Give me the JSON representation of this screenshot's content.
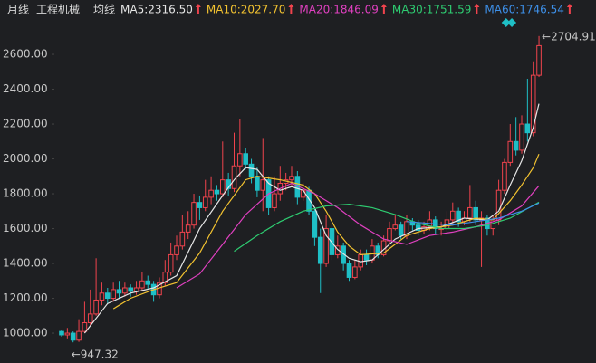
{
  "chart_data": {
    "type": "candlestick",
    "period": "月线",
    "title": "工程机械",
    "ma_label": "均线",
    "up_color": "#f0434d",
    "down_color": "#1fbfc6",
    "ylim": [
      860,
      2756
    ],
    "yticks": [
      {
        "value": 1000,
        "label": "1000.00"
      },
      {
        "value": 1200,
        "label": "1200.00"
      },
      {
        "value": 1400,
        "label": "1400.00"
      },
      {
        "value": 1600,
        "label": "1600.00"
      },
      {
        "value": 1800,
        "label": "1800.00"
      },
      {
        "value": 2000,
        "label": "2000.00"
      },
      {
        "value": 2200,
        "label": "2200.00"
      },
      {
        "value": 2400,
        "label": "2400.00"
      },
      {
        "value": 2600,
        "label": "2600.00"
      }
    ],
    "grid": false,
    "annotations": {
      "high": "←2704.91",
      "low": "←947.32"
    },
    "candles": [
      [
        1010,
        1020,
        980,
        990
      ],
      [
        990,
        1030,
        970,
        1000
      ],
      [
        1000,
        1010,
        947.32,
        960
      ],
      [
        960,
        1080,
        950,
        1010
      ],
      [
        1010,
        1180,
        1000,
        1060
      ],
      [
        1060,
        1250,
        1040,
        1110
      ],
      [
        1110,
        1430,
        1100,
        1190
      ],
      [
        1190,
        1290,
        1160,
        1230
      ],
      [
        1230,
        1260,
        1170,
        1200
      ],
      [
        1200,
        1290,
        1180,
        1250
      ],
      [
        1250,
        1300,
        1200,
        1230
      ],
      [
        1230,
        1290,
        1210,
        1260
      ],
      [
        1260,
        1280,
        1210,
        1240
      ],
      [
        1240,
        1300,
        1220,
        1260
      ],
      [
        1260,
        1350,
        1240,
        1300
      ],
      [
        1300,
        1330,
        1250,
        1280
      ],
      [
        1280,
        1300,
        1180,
        1220
      ],
      [
        1220,
        1320,
        1200,
        1290
      ],
      [
        1290,
        1420,
        1270,
        1350
      ],
      [
        1350,
        1520,
        1330,
        1450
      ],
      [
        1450,
        1560,
        1420,
        1500
      ],
      [
        1500,
        1680,
        1480,
        1580
      ],
      [
        1580,
        1700,
        1540,
        1620
      ],
      [
        1620,
        1800,
        1600,
        1750
      ],
      [
        1750,
        1790,
        1650,
        1720
      ],
      [
        1720,
        1880,
        1700,
        1780
      ],
      [
        1780,
        1900,
        1740,
        1820
      ],
      [
        1820,
        1850,
        1760,
        1800
      ],
      [
        1800,
        2100,
        1780,
        1880
      ],
      [
        1880,
        1920,
        1790,
        1830
      ],
      [
        1830,
        2150,
        1810,
        1960
      ],
      [
        1960,
        2230,
        1900,
        2030
      ],
      [
        2030,
        2060,
        1940,
        1970
      ],
      [
        1970,
        2000,
        1860,
        1900
      ],
      [
        1900,
        1950,
        1780,
        1820
      ],
      [
        1820,
        2120,
        1700,
        1880
      ],
      [
        1880,
        1900,
        1680,
        1720
      ],
      [
        1720,
        1900,
        1700,
        1800
      ],
      [
        1800,
        1960,
        1760,
        1860
      ],
      [
        1860,
        1920,
        1820,
        1880
      ],
      [
        1880,
        1960,
        1840,
        1900
      ],
      [
        1900,
        1930,
        1740,
        1780
      ],
      [
        1780,
        1860,
        1760,
        1820
      ],
      [
        1820,
        1840,
        1680,
        1700
      ],
      [
        1700,
        1720,
        1500,
        1550
      ],
      [
        1550,
        1600,
        1230,
        1400
      ],
      [
        1400,
        1680,
        1380,
        1600
      ],
      [
        1600,
        1620,
        1420,
        1450
      ],
      [
        1450,
        1560,
        1430,
        1500
      ],
      [
        1500,
        1520,
        1360,
        1400
      ],
      [
        1400,
        1420,
        1300,
        1320
      ],
      [
        1320,
        1420,
        1310,
        1380
      ],
      [
        1380,
        1480,
        1360,
        1450
      ],
      [
        1450,
        1480,
        1390,
        1420
      ],
      [
        1420,
        1540,
        1400,
        1500
      ],
      [
        1500,
        1520,
        1430,
        1450
      ],
      [
        1450,
        1560,
        1440,
        1530
      ],
      [
        1530,
        1640,
        1510,
        1600
      ],
      [
        1600,
        1680,
        1590,
        1620
      ],
      [
        1620,
        1640,
        1540,
        1560
      ],
      [
        1560,
        1680,
        1540,
        1640
      ],
      [
        1640,
        1660,
        1590,
        1620
      ],
      [
        1620,
        1650,
        1560,
        1590
      ],
      [
        1590,
        1640,
        1570,
        1610
      ],
      [
        1610,
        1700,
        1590,
        1650
      ],
      [
        1650,
        1670,
        1570,
        1600
      ],
      [
        1600,
        1640,
        1560,
        1600
      ],
      [
        1600,
        1700,
        1580,
        1650
      ],
      [
        1650,
        1750,
        1630,
        1700
      ],
      [
        1700,
        1720,
        1610,
        1640
      ],
      [
        1640,
        1700,
        1620,
        1660
      ],
      [
        1660,
        1850,
        1640,
        1720
      ],
      [
        1720,
        1760,
        1620,
        1650
      ],
      [
        1650,
        1700,
        1380,
        1660
      ],
      [
        1660,
        1680,
        1560,
        1600
      ],
      [
        1600,
        1680,
        1560,
        1650
      ],
      [
        1650,
        1880,
        1620,
        1820
      ],
      [
        1820,
        2000,
        1800,
        1980
      ],
      [
        1980,
        2200,
        1960,
        2100
      ],
      [
        2100,
        2240,
        2020,
        2050
      ],
      [
        2050,
        2250,
        2030,
        2200
      ],
      [
        2200,
        2460,
        2100,
        2150
      ],
      [
        2150,
        2560,
        2130,
        2480
      ],
      [
        2480,
        2704.91,
        2470,
        2650
      ]
    ],
    "series": [
      {
        "name": "MA5:2316.50",
        "color": "#e6e6e6",
        "x": [
          4,
          8,
          12,
          16,
          20,
          24,
          28,
          30,
          32,
          34,
          36,
          38,
          40,
          42,
          44,
          46,
          48,
          50,
          52,
          54,
          58,
          62,
          66,
          70,
          74,
          76,
          78,
          80,
          82,
          83
        ],
        "values": [
          1000,
          1170,
          1230,
          1260,
          1330,
          1600,
          1790,
          1880,
          1950,
          1940,
          1860,
          1820,
          1840,
          1820,
          1720,
          1560,
          1480,
          1430,
          1410,
          1420,
          1540,
          1600,
          1610,
          1660,
          1650,
          1700,
          1850,
          1990,
          2180,
          2316.5
        ]
      },
      {
        "name": "MA10:2027.70",
        "color": "#f2c230",
        "x": [
          9,
          12,
          16,
          20,
          24,
          28,
          32,
          34,
          38,
          42,
          44,
          46,
          48,
          50,
          52,
          56,
          60,
          64,
          68,
          72,
          75,
          78,
          80,
          82,
          83
        ],
        "values": [
          1140,
          1200,
          1250,
          1290,
          1460,
          1700,
          1880,
          1900,
          1880,
          1850,
          1800,
          1700,
          1580,
          1500,
          1450,
          1460,
          1560,
          1600,
          1620,
          1660,
          1650,
          1760,
          1850,
          1950,
          2027.7
        ]
      },
      {
        "name": "MA20:1846.09",
        "color": "#e040c0",
        "x": [
          20,
          24,
          28,
          32,
          36,
          40,
          44,
          48,
          52,
          56,
          60,
          64,
          68,
          72,
          76,
          80,
          83
        ],
        "values": [
          1260,
          1340,
          1510,
          1680,
          1800,
          1860,
          1800,
          1720,
          1620,
          1540,
          1510,
          1560,
          1580,
          1610,
          1650,
          1730,
          1846.09
        ]
      },
      {
        "name": "MA30:1751.59",
        "color": "#2ecc71",
        "x": [
          30,
          34,
          38,
          42,
          46,
          50,
          54,
          58,
          62,
          66,
          70,
          74,
          78,
          83
        ],
        "values": [
          1470,
          1560,
          1640,
          1700,
          1730,
          1740,
          1720,
          1680,
          1630,
          1600,
          1600,
          1620,
          1660,
          1751.59
        ]
      },
      {
        "name": "MA60:1746.54",
        "color": "#3d8fe8",
        "x": [
          60,
          64,
          68,
          72,
          76,
          80,
          83
        ],
        "values": [
          1640,
          1630,
          1620,
          1640,
          1660,
          1700,
          1746.54
        ]
      }
    ]
  }
}
